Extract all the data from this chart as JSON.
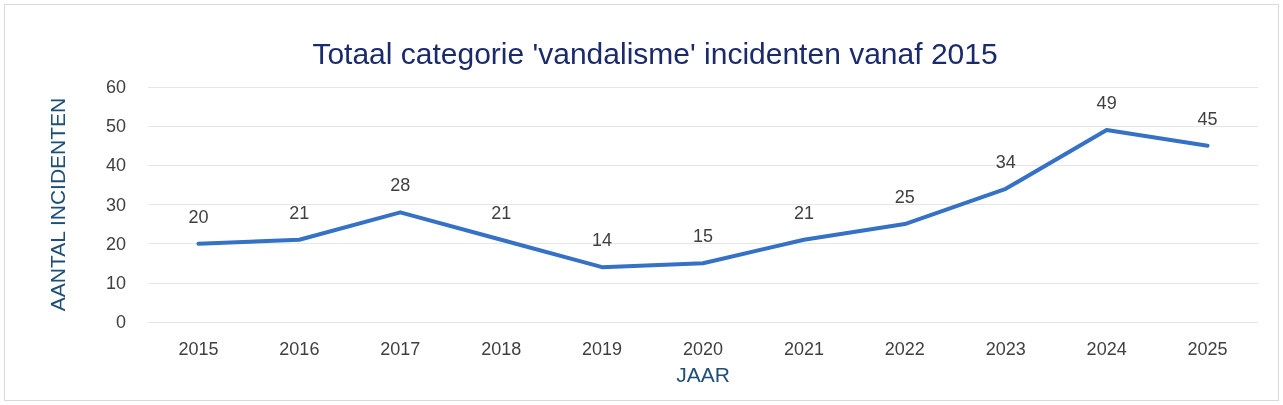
{
  "chart_data": {
    "type": "line",
    "title": "Totaal categorie 'vandalisme' incidenten vanaf 2015",
    "xlabel": "JAAR",
    "ylabel": "AANTAL INCIDENTEN",
    "categories": [
      "2015",
      "2016",
      "2017",
      "2018",
      "2019",
      "2020",
      "2021",
      "2022",
      "2023",
      "2024",
      "2025"
    ],
    "values": [
      20,
      21,
      28,
      21,
      14,
      15,
      21,
      25,
      34,
      49,
      45
    ],
    "color": "#3571c5",
    "ylim": [
      0,
      60
    ],
    "yticks": [
      0,
      10,
      20,
      30,
      40,
      50,
      60
    ],
    "grid": "y",
    "data_labels": true,
    "marker": "none",
    "line_style": "solid"
  }
}
